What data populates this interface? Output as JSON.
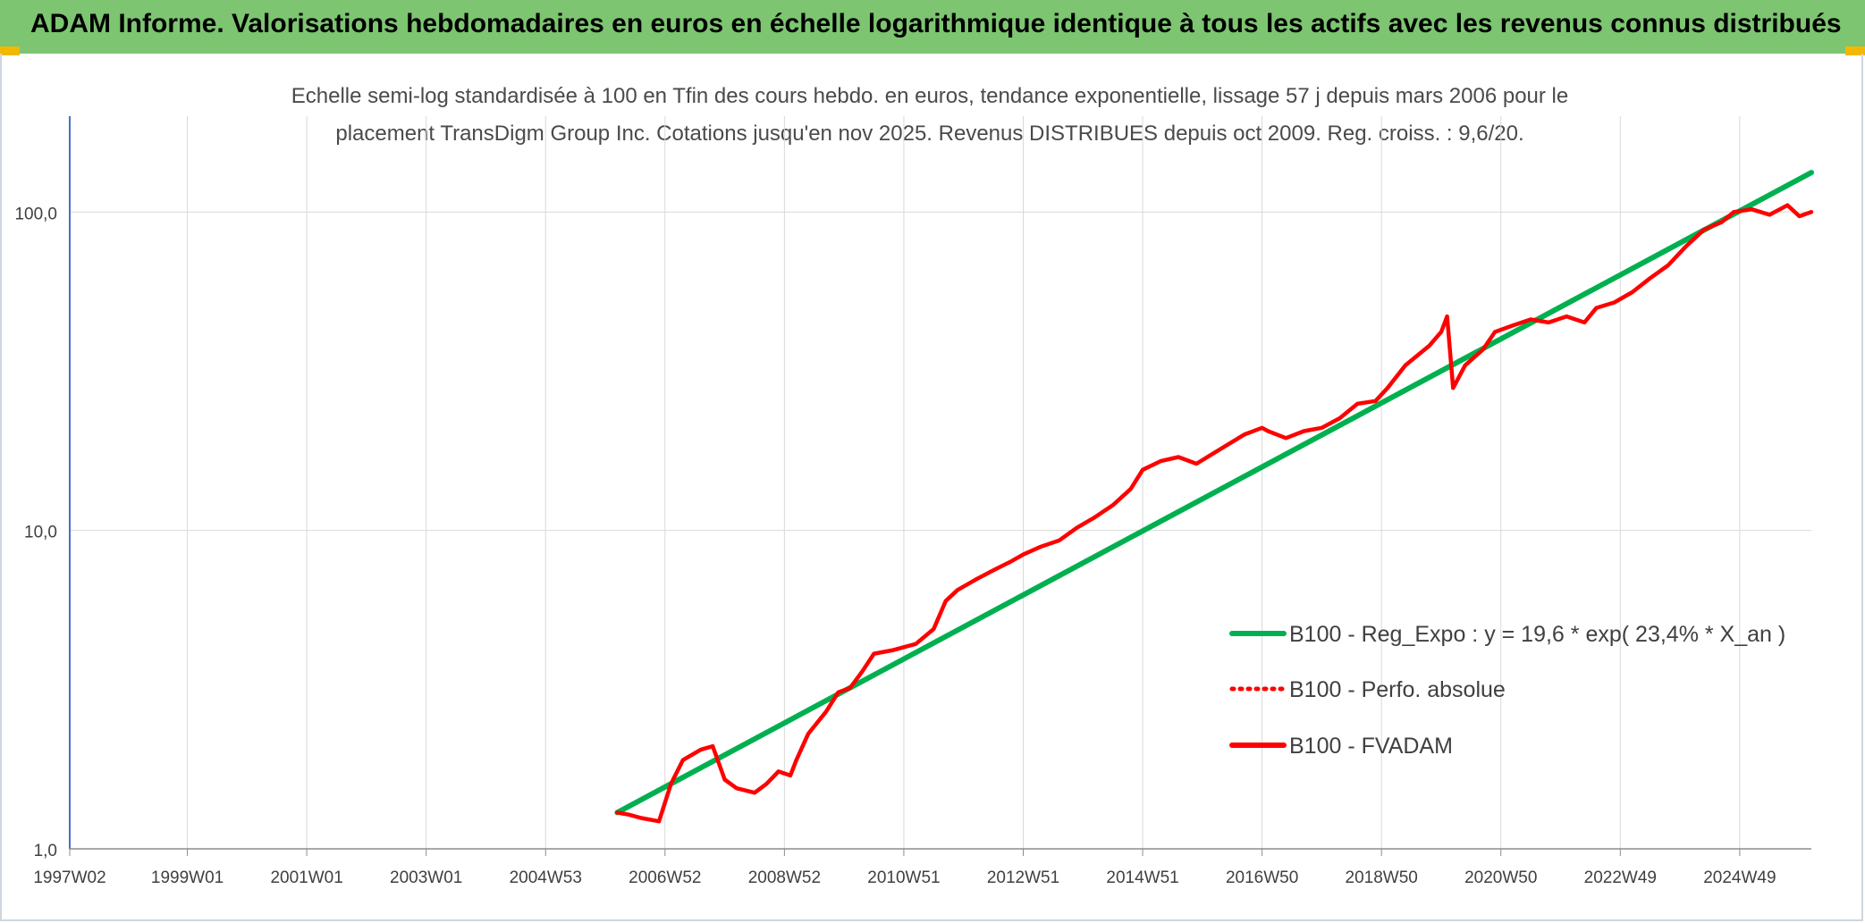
{
  "banner": {
    "title": "ADAM Informe. Valorisations hebdomadaires en euros en échelle logarithmique identique à tous les actifs avec les revenus connus distribués"
  },
  "colors": {
    "banner": "#7dc571",
    "accent": "#f2b800",
    "trend": "#00b050",
    "series": "#ff0000"
  },
  "chart_data": {
    "type": "line",
    "title_lines": [
      "Echelle semi-log standardisée à 100 en Tfin des cours hebdo. en euros, tendance exponentielle, lissage 57 j depuis mars 2006 pour le",
      "placement TransDigm Group Inc. Cotations jusqu'en nov 2025. Revenus DISTRIBUES depuis oct 2009. Reg. croiss. : 9,6/20."
    ],
    "y_scale": "log",
    "ylim": [
      1,
      200
    ],
    "y_ticks": [
      {
        "value": 1,
        "label": "1,0"
      },
      {
        "value": 10,
        "label": "10,0"
      },
      {
        "value": 100,
        "label": "100,0"
      }
    ],
    "xlim": [
      1997.03,
      2026.2
    ],
    "x_ticks": [
      {
        "value": 1997.03,
        "label": "1997W02"
      },
      {
        "value": 1999.0,
        "label": "1999W01"
      },
      {
        "value": 2001.0,
        "label": "2001W01"
      },
      {
        "value": 2003.0,
        "label": "2003W01"
      },
      {
        "value": 2005.0,
        "label": "2004W53"
      },
      {
        "value": 2007.0,
        "label": "2006W52"
      },
      {
        "value": 2009.0,
        "label": "2008W52"
      },
      {
        "value": 2011.0,
        "label": "2010W51"
      },
      {
        "value": 2013.0,
        "label": "2012W51"
      },
      {
        "value": 2015.0,
        "label": "2014W51"
      },
      {
        "value": 2017.0,
        "label": "2016W50"
      },
      {
        "value": 2019.0,
        "label": "2018W50"
      },
      {
        "value": 2021.0,
        "label": "2020W50"
      },
      {
        "value": 2023.0,
        "label": "2022W49"
      },
      {
        "value": 2025.0,
        "label": "2024W49"
      }
    ],
    "grid": true,
    "legend_position": "right",
    "series": [
      {
        "name": "B100 - Reg_Expo : y = 19,6 * exp( 23,4% *  X_an )",
        "color": "#00b050",
        "style": "solid",
        "x": [
          2006.2,
          2026.2
        ],
        "y": [
          1.3,
          133
        ]
      },
      {
        "name": "B100 - Perfo. absolue",
        "color": "#ff0000",
        "style": "dotted",
        "x": [],
        "y": []
      },
      {
        "name": "B100 - FVADAM",
        "color": "#ff0000",
        "style": "solid",
        "x": [
          2006.2,
          2006.4,
          2006.6,
          2006.9,
          2007.1,
          2007.3,
          2007.6,
          2007.8,
          2008.0,
          2008.2,
          2008.5,
          2008.7,
          2008.9,
          2009.1,
          2009.2,
          2009.4,
          2009.7,
          2009.9,
          2010.1,
          2010.3,
          2010.5,
          2010.8,
          2011.0,
          2011.2,
          2011.5,
          2011.7,
          2011.9,
          2012.2,
          2012.5,
          2012.8,
          2013.0,
          2013.3,
          2013.6,
          2013.9,
          2014.2,
          2014.5,
          2014.8,
          2015.0,
          2015.3,
          2015.6,
          2015.9,
          2016.3,
          2016.7,
          2017.0,
          2017.1,
          2017.4,
          2017.7,
          2018.0,
          2018.3,
          2018.6,
          2018.9,
          2019.1,
          2019.4,
          2019.8,
          2020.0,
          2020.1,
          2020.2,
          2020.4,
          2020.7,
          2020.9,
          2021.2,
          2021.5,
          2021.8,
          2022.1,
          2022.4,
          2022.6,
          2022.9,
          2023.2,
          2023.5,
          2023.8,
          2024.1,
          2024.4,
          2024.7,
          2024.9,
          2025.2,
          2025.5,
          2025.8,
          2026.0,
          2026.2
        ],
        "y": [
          1.3,
          1.28,
          1.25,
          1.22,
          1.6,
          1.9,
          2.05,
          2.1,
          1.65,
          1.55,
          1.5,
          1.6,
          1.75,
          1.7,
          1.9,
          2.3,
          2.7,
          3.1,
          3.2,
          3.6,
          4.1,
          4.2,
          4.3,
          4.4,
          4.9,
          6.0,
          6.5,
          7.0,
          7.5,
          8.0,
          8.4,
          8.9,
          9.3,
          10.2,
          11.0,
          12.0,
          13.5,
          15.5,
          16.5,
          17.0,
          16.2,
          18.0,
          20.0,
          21.0,
          20.5,
          19.5,
          20.5,
          21.0,
          22.5,
          25.0,
          25.5,
          28.0,
          33.0,
          38.0,
          42.0,
          47.0,
          28.0,
          33.0,
          37.0,
          42.0,
          44.0,
          46.0,
          45.0,
          47.0,
          45.0,
          50.0,
          52.0,
          56.0,
          62.0,
          68.0,
          78.0,
          88.0,
          93.0,
          100.0,
          102.0,
          98.0,
          105.0,
          97.0,
          100.0
        ]
      }
    ]
  }
}
